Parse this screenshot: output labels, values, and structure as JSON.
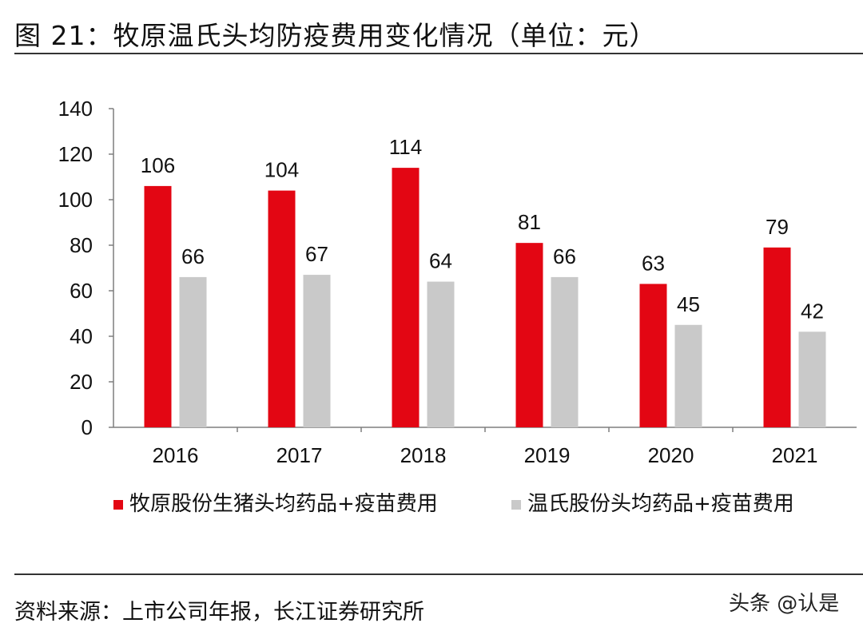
{
  "header": {
    "title": "图 21：牧原温氏头均防疫费用变化情况（单位：元）"
  },
  "chart_data": {
    "type": "bar",
    "title": "牧原温氏头均防疫费用变化情况（单位：元）",
    "categories": [
      "2016",
      "2017",
      "2018",
      "2019",
      "2020",
      "2021"
    ],
    "series": [
      {
        "name": "牧原股份生猪头均药品+疫苗费用",
        "color": "#e30613",
        "values": [
          106,
          104,
          114,
          81,
          63,
          79
        ]
      },
      {
        "name": "温氏股份头均药品+疫苗费用",
        "color": "#c9c9c9",
        "values": [
          66,
          67,
          64,
          66,
          45,
          42
        ]
      }
    ],
    "ylim": [
      0,
      140
    ],
    "yticks": [
      0,
      20,
      40,
      60,
      80,
      100,
      120,
      140
    ],
    "xlabel": "",
    "ylabel": "",
    "legend_position": "bottom",
    "grid": false
  },
  "footer": {
    "source": "资料来源：上市公司年报，长江证券研究所",
    "watermark": "头条 @认是"
  }
}
